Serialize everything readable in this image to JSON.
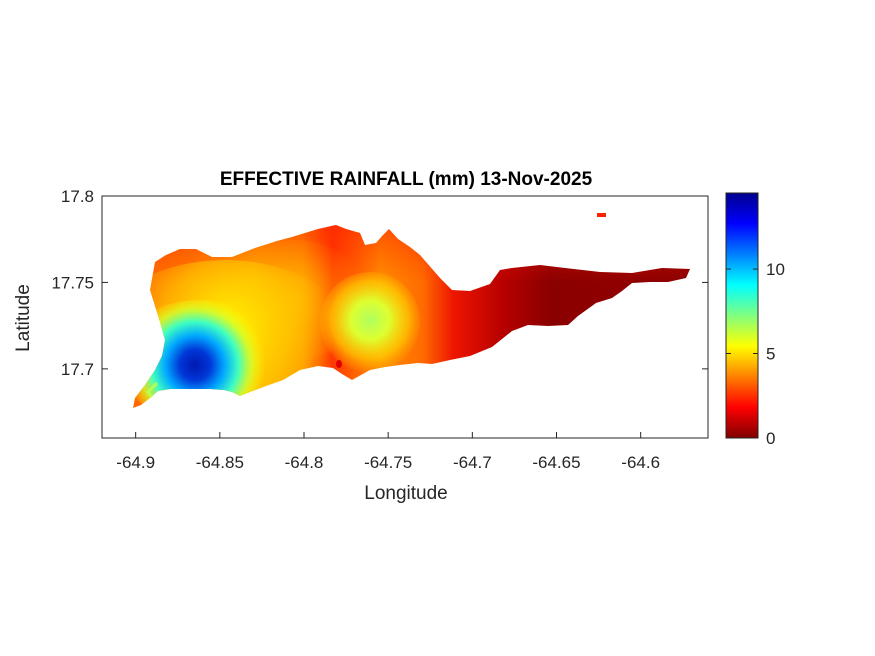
{
  "chart_data": {
    "type": "heatmap",
    "title": "EFFECTIVE RAINFALL (mm) 13-Nov-2025",
    "xlabel": "Longitude",
    "ylabel": "Latitude",
    "xlim": [
      -64.92,
      -64.56
    ],
    "ylim": [
      17.66,
      17.8
    ],
    "x_ticks": [
      {
        "value": -64.9,
        "label": "-64.9"
      },
      {
        "value": -64.85,
        "label": "-64.85"
      },
      {
        "value": -64.8,
        "label": "-64.8"
      },
      {
        "value": -64.75,
        "label": "-64.75"
      },
      {
        "value": -64.7,
        "label": "-64.7"
      },
      {
        "value": -64.65,
        "label": "-64.65"
      },
      {
        "value": -64.6,
        "label": "-64.6"
      }
    ],
    "y_ticks": [
      {
        "value": 17.8,
        "label": "17.8"
      },
      {
        "value": 17.75,
        "label": "17.75"
      },
      {
        "value": 17.7,
        "label": "17.7"
      }
    ],
    "colorbar": {
      "colormap": "jet",
      "reversed": true,
      "clim": [
        0,
        14.5
      ],
      "ticks": [
        {
          "value": 0,
          "label": "0"
        },
        {
          "value": 5,
          "label": "5"
        },
        {
          "value": 10,
          "label": "10"
        }
      ]
    },
    "field_hotspots": [
      {
        "lon": -64.865,
        "lat": 17.697,
        "value": 14
      },
      {
        "lon": -64.845,
        "lat": 17.712,
        "value": 8
      },
      {
        "lon": -64.76,
        "lat": 17.725,
        "value": 8
      },
      {
        "lon": -64.79,
        "lat": 17.74,
        "value": 4.5
      },
      {
        "lon": -64.65,
        "lat": 17.74,
        "value": 0.3
      }
    ],
    "grid": false,
    "box": true
  }
}
